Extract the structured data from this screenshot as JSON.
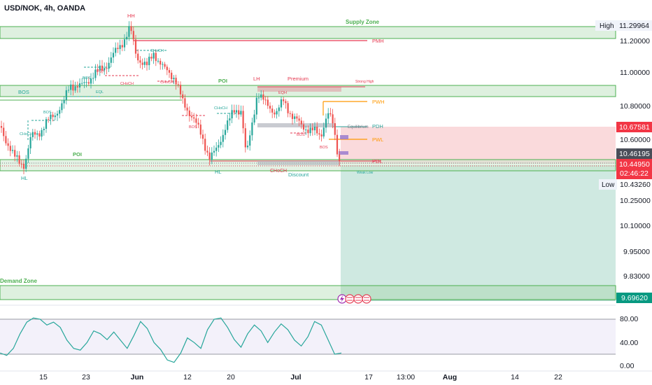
{
  "symbol_title": "USD/NOK, 4h, OANDA",
  "price_axis": {
    "ticks": [
      "11.20000",
      "11.00000",
      "10.80000",
      "10.60000",
      "10.25000",
      "10.10000",
      "9.95000",
      "9.83000"
    ],
    "high_label": "High",
    "high_value": "11.29964",
    "low_label": "Low",
    "low_value": "10.43260",
    "tp_value": "10.67581",
    "entry_value": "10.46195",
    "last_price": "10.44950",
    "countdown": "02:46:22",
    "stop_value": "9.69620"
  },
  "osc_axis": {
    "ticks": [
      "80.00",
      "40.00",
      "0.00"
    ]
  },
  "time_axis": [
    "15",
    "23",
    "Jun",
    "12",
    "20",
    "Jul",
    "17",
    "13:00",
    "Aug",
    "14",
    "22"
  ],
  "annotations": {
    "supply_zone": "Supply Zone",
    "demand_zone": "Demand Zone",
    "hh": "HH",
    "lh": "LH",
    "hl_left": "HL",
    "hl_mid": "HL",
    "pmh": "PMH",
    "pwh": "PWH",
    "pdh": "PDH",
    "pwl": "PWL",
    "pdl": "PDL",
    "premium": "Premium",
    "discount": "Discount",
    "strong_high": "Strong High",
    "weak_low": "Weak Low",
    "equilibrium": "Equilibrium",
    "poi_top": "POI",
    "poi_bottom": "POI",
    "bos_big": "BOS",
    "bos": "BOS",
    "choch": "CHoCH",
    "eqh": "EQH",
    "eql": "EQL",
    "eqh_small": "EQH"
  },
  "colors": {
    "up": "#26a69a",
    "down": "#ef5350",
    "zone": "#4caf50",
    "tp_zone": "#f7c9cc",
    "sl_zone": "#cde9e1",
    "pwh": "#ff9800",
    "pmh": "#e53950",
    "osc": "#26a69a"
  },
  "oscillator": {
    "values": [
      22,
      18,
      30,
      55,
      75,
      82,
      80,
      70,
      75,
      66,
      44,
      30,
      27,
      40,
      60,
      55,
      45,
      58,
      44,
      30,
      52,
      76,
      64,
      40,
      28,
      10,
      6,
      22,
      48,
      40,
      30,
      62,
      80,
      82,
      66,
      45,
      32,
      55,
      70,
      60,
      40,
      58,
      72,
      62,
      44,
      34,
      50,
      76,
      70,
      45,
      20,
      22
    ]
  }
}
